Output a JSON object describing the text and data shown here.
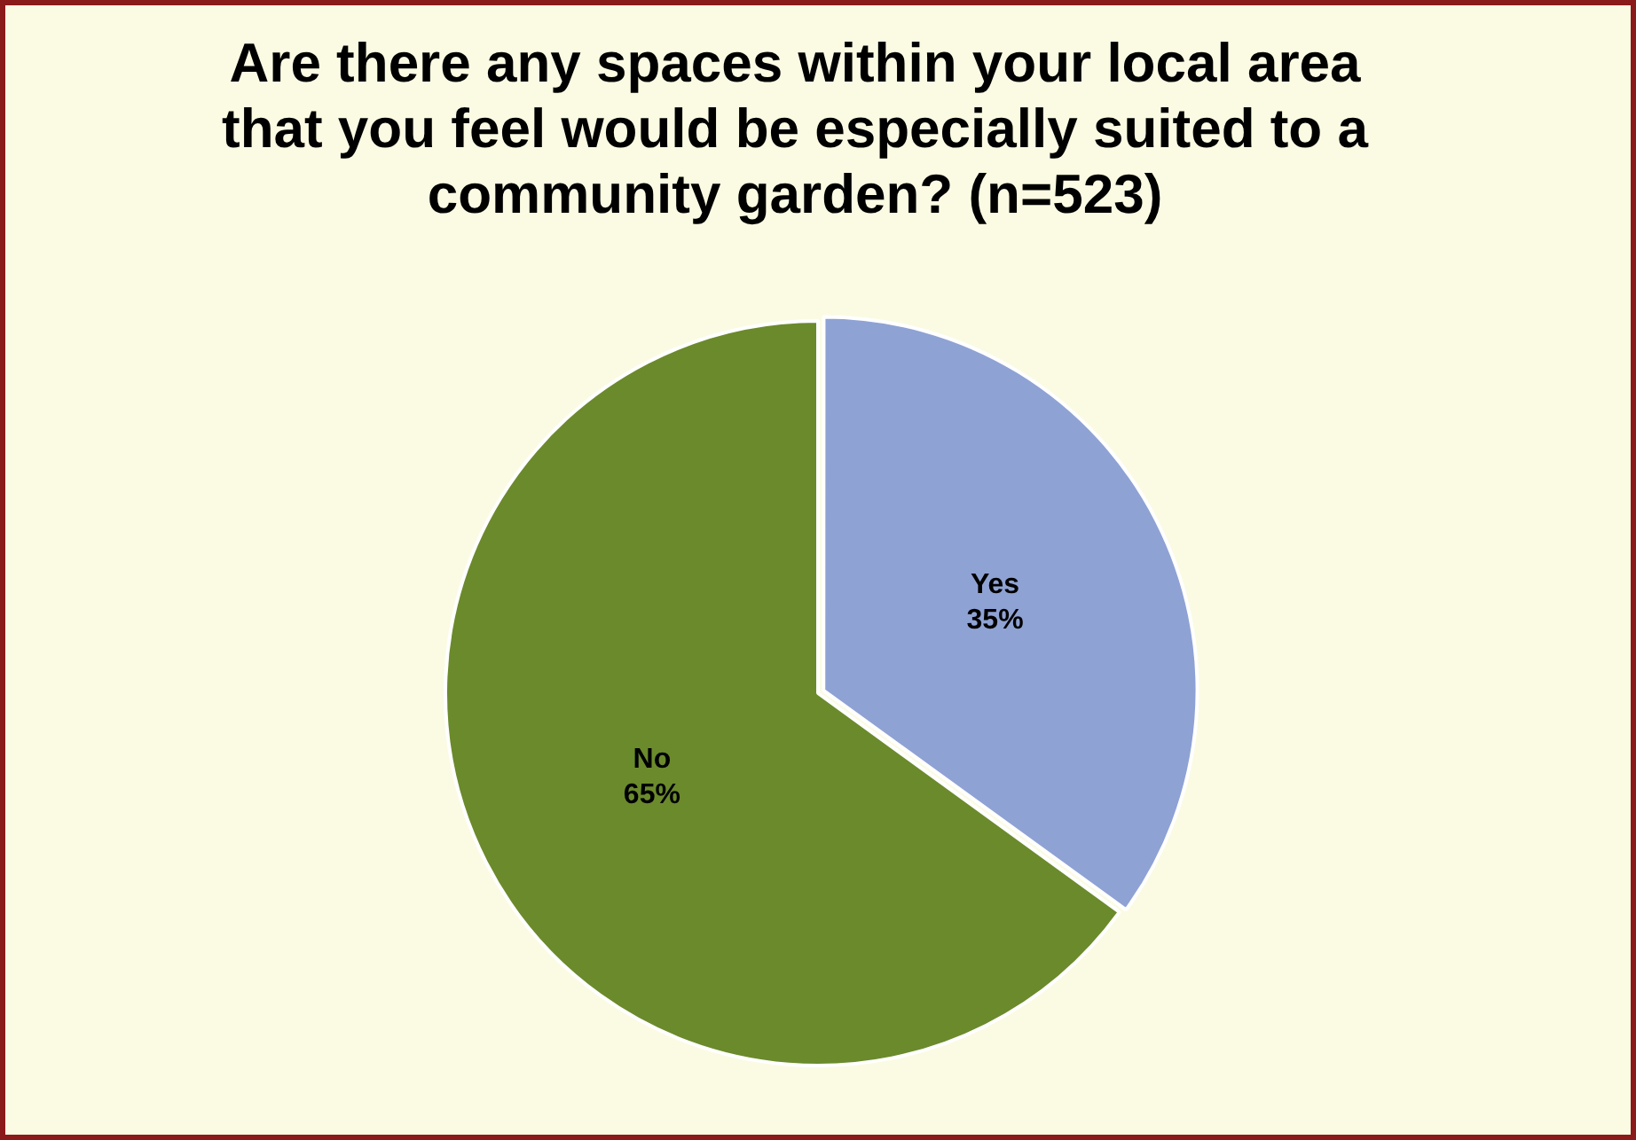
{
  "chart_data": {
    "type": "pie",
    "title": "Are there any spaces within your local area that you feel would be especially suited to a community garden? (n=523)",
    "categories": [
      "Yes",
      "No"
    ],
    "values": [
      35,
      65
    ],
    "colors": [
      "#8fa2d4",
      "#6b8a2c"
    ],
    "value_labels": [
      "35%",
      "65%"
    ],
    "legend": false
  }
}
